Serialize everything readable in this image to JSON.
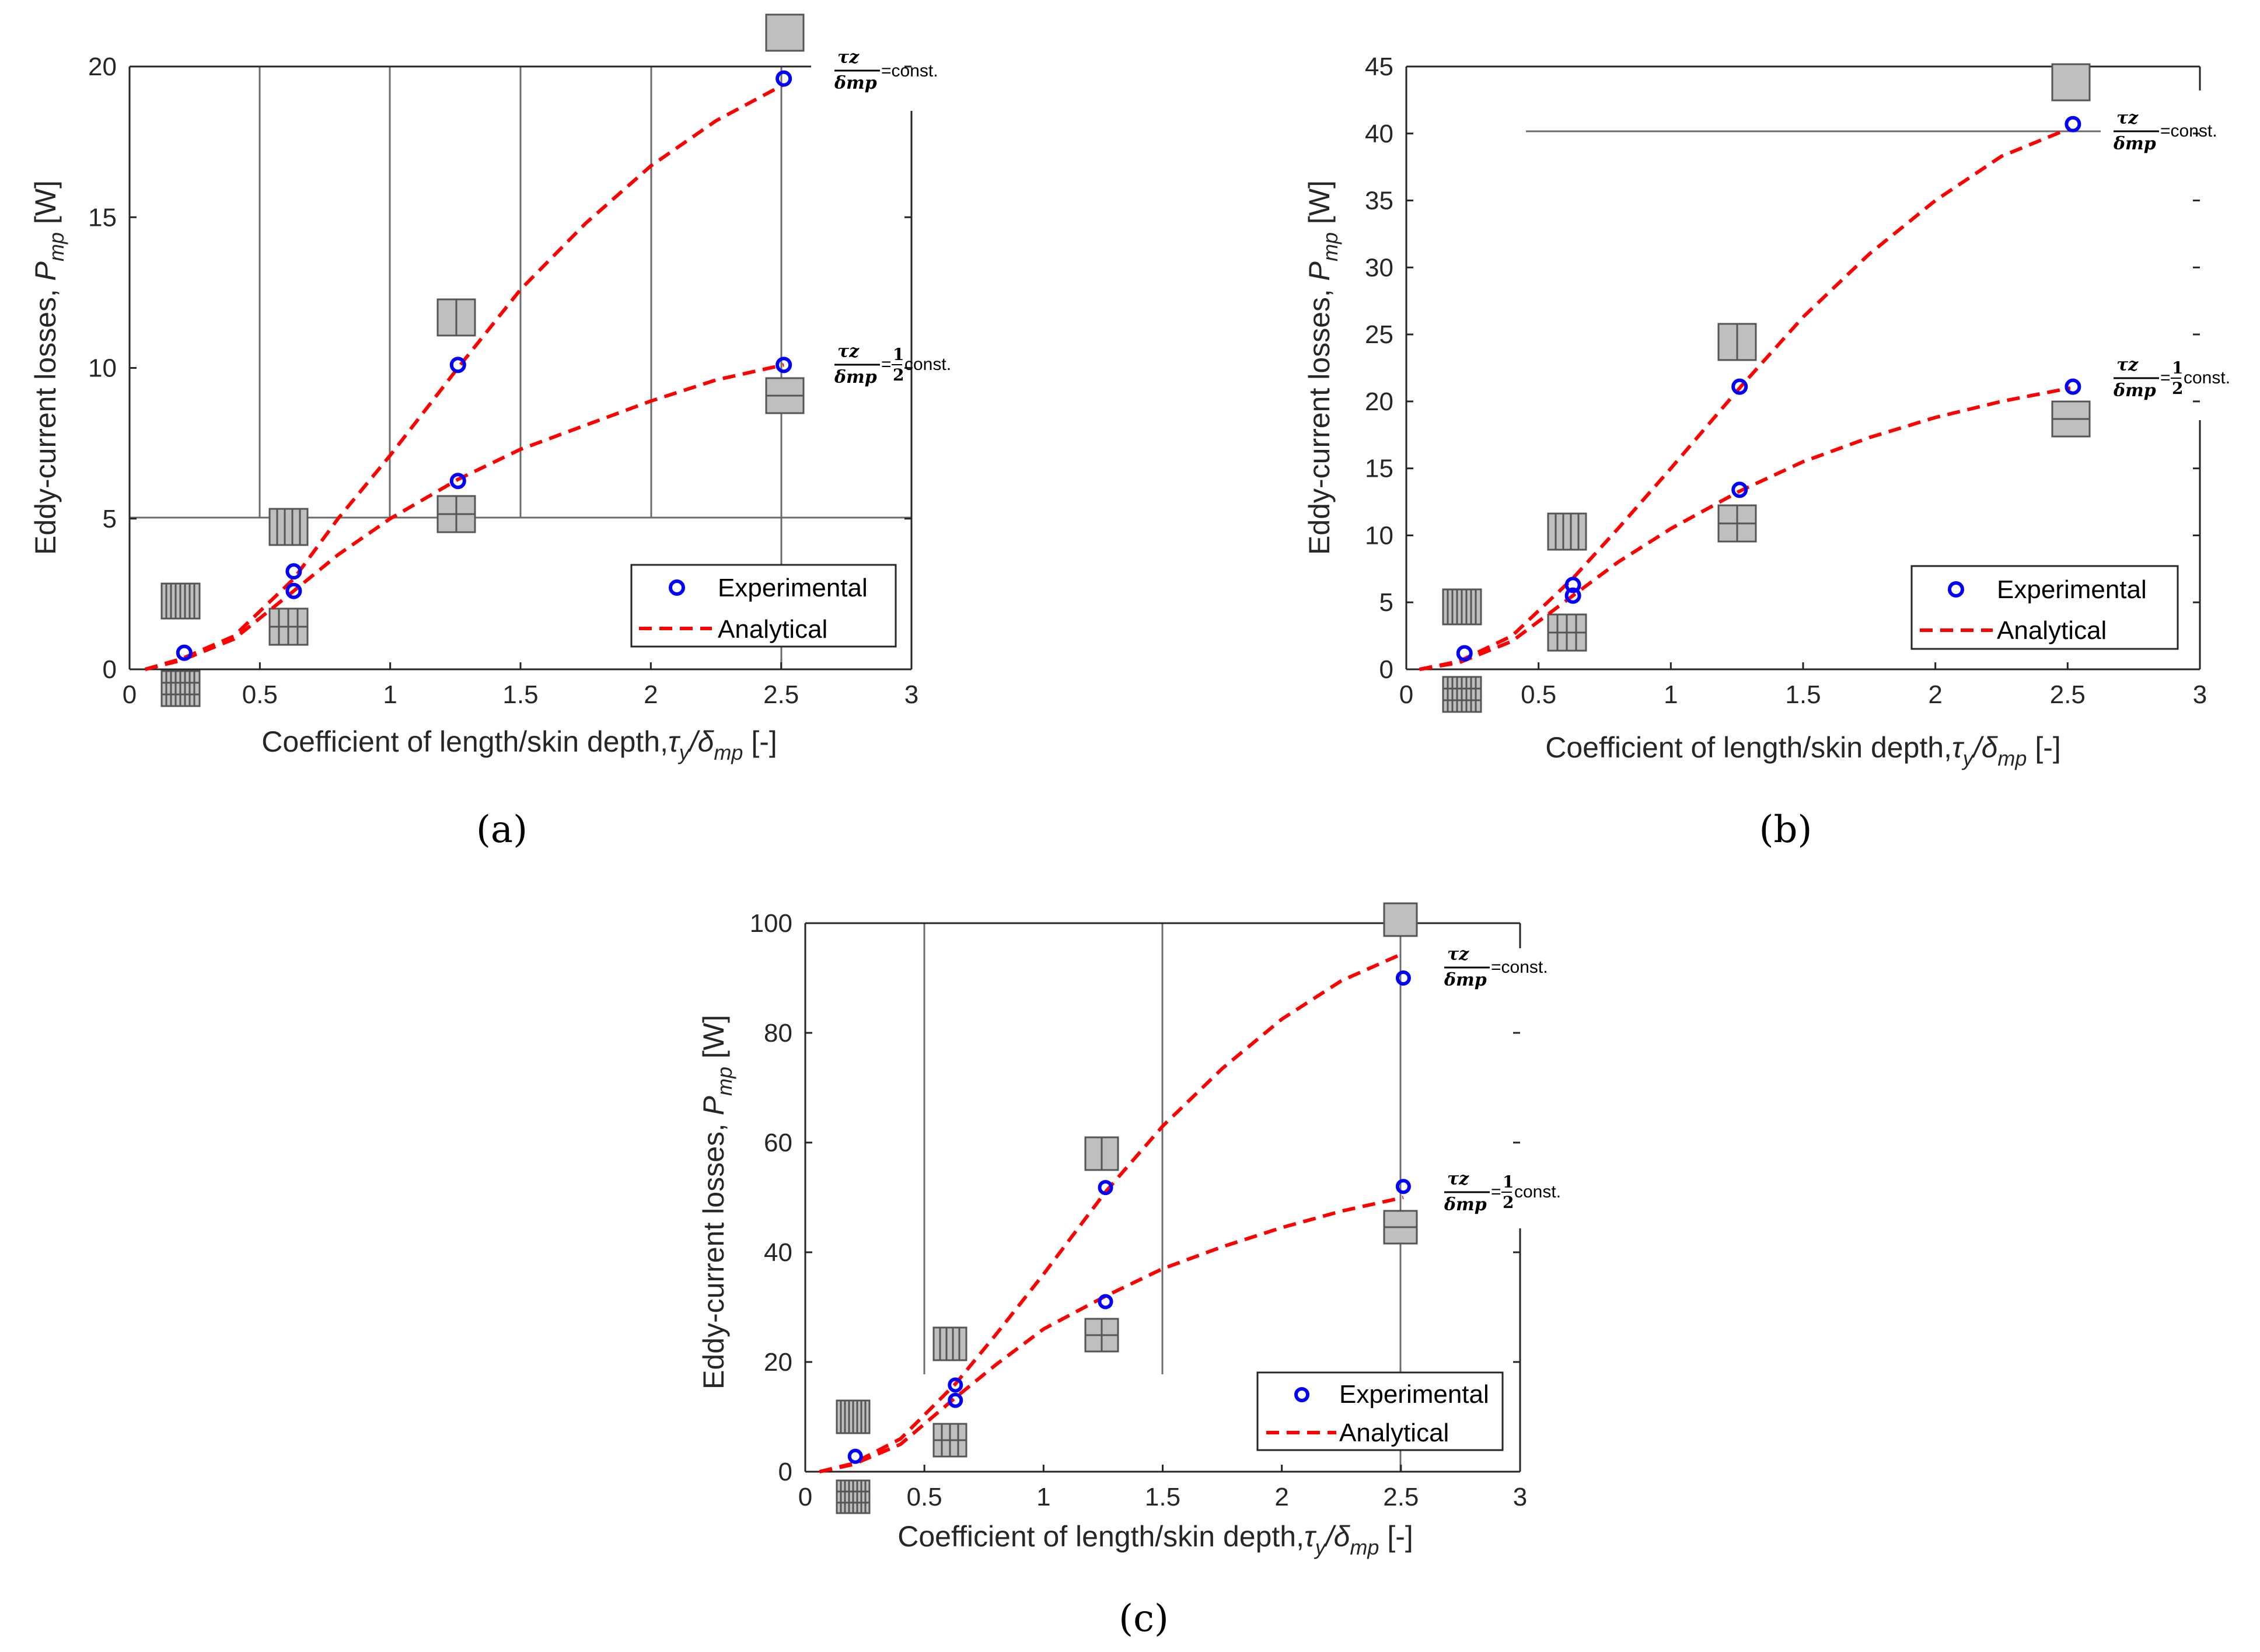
{
  "figure": {
    "panels": [
      "(a)",
      "(b)",
      "(c)"
    ]
  },
  "legend": {
    "experimental": "Experimental",
    "analytical": "Analytical"
  },
  "axes": {
    "xlabel": "Coefficient of length/skin depth,",
    "xlabel_math": "τ",
    "xlabel_sub1": "y",
    "xlabel_sep": "/δ",
    "xlabel_sub2": "mp",
    "xlabel_unit": "[-]",
    "ylabel": "Eddy-current losses,",
    "ylabel_math": "P",
    "ylabel_sub": "mp",
    "ylabel_unit": "[W]"
  },
  "annotations": {
    "tau_z": "τz",
    "delta_mp": "δmp",
    "eq_const": "=const.",
    "eq": "=",
    "half_num": "1",
    "half_den": "2",
    "const": "const."
  },
  "colors": {
    "experimental": "#0000ff",
    "analytical": "#ff0000",
    "marker_fill": "#c0c0c0"
  },
  "chart_data": [
    {
      "type": "scatter",
      "panel": "(a)",
      "xlim": [
        0,
        3
      ],
      "ylim": [
        0,
        20
      ],
      "xticks": [
        0,
        0.5,
        1,
        1.5,
        2,
        2.5,
        3
      ],
      "yticks": [
        0,
        5,
        10,
        15,
        20
      ],
      "series": [
        {
          "name": "Experimental",
          "kind": "markers",
          "points": [
            [
              0.21,
              0.55
            ],
            [
              0.63,
              3.25
            ],
            [
              0.63,
              2.6
            ],
            [
              1.26,
              10.1
            ],
            [
              1.26,
              6.25
            ],
            [
              2.51,
              19.6
            ],
            [
              2.51,
              10.1
            ]
          ]
        },
        {
          "name": "Analytical",
          "kind": "dashed",
          "curve": "τz/δmp = const.",
          "points": [
            [
              0.06,
              0.0
            ],
            [
              0.2,
              0.35
            ],
            [
              0.4,
              1.1
            ],
            [
              0.63,
              3.0
            ],
            [
              0.8,
              5.0
            ],
            [
              1.0,
              7.1
            ],
            [
              1.26,
              10.0
            ],
            [
              1.5,
              12.6
            ],
            [
              1.75,
              14.8
            ],
            [
              2.0,
              16.7
            ],
            [
              2.25,
              18.2
            ],
            [
              2.51,
              19.4
            ]
          ]
        },
        {
          "name": "Analytical",
          "kind": "dashed",
          "curve": "τz/δmp = 1/2 const.",
          "points": [
            [
              0.06,
              0.0
            ],
            [
              0.2,
              0.3
            ],
            [
              0.4,
              1.0
            ],
            [
              0.63,
              2.6
            ],
            [
              0.8,
              3.8
            ],
            [
              1.0,
              5.0
            ],
            [
              1.26,
              6.3
            ],
            [
              1.5,
              7.3
            ],
            [
              1.75,
              8.1
            ],
            [
              2.0,
              8.9
            ],
            [
              2.25,
              9.6
            ],
            [
              2.51,
              10.1
            ]
          ]
        }
      ]
    },
    {
      "type": "scatter",
      "panel": "(b)",
      "xlim": [
        0,
        3
      ],
      "ylim": [
        0,
        45
      ],
      "xticks": [
        0,
        0.5,
        1,
        1.5,
        2,
        2.5,
        3
      ],
      "yticks": [
        0,
        5,
        10,
        15,
        20,
        25,
        30,
        35,
        40,
        45
      ],
      "series": [
        {
          "name": "Experimental",
          "kind": "markers",
          "points": [
            [
              0.22,
              1.2
            ],
            [
              0.63,
              6.3
            ],
            [
              0.63,
              5.5
            ],
            [
              1.26,
              21.1
            ],
            [
              1.26,
              13.4
            ],
            [
              2.52,
              40.7
            ],
            [
              2.52,
              21.1
            ]
          ]
        },
        {
          "name": "Analytical",
          "kind": "dashed",
          "curve": "τz/δmp = const.",
          "points": [
            [
              0.05,
              0.0
            ],
            [
              0.2,
              0.6
            ],
            [
              0.4,
              2.5
            ],
            [
              0.63,
              6.8
            ],
            [
              0.8,
              10.5
            ],
            [
              1.0,
              15.0
            ],
            [
              1.26,
              21.0
            ],
            [
              1.5,
              26.3
            ],
            [
              1.75,
              31.0
            ],
            [
              2.0,
              35.0
            ],
            [
              2.25,
              38.3
            ],
            [
              2.51,
              40.4
            ]
          ]
        },
        {
          "name": "Analytical",
          "kind": "dashed",
          "curve": "τz/δmp = 1/2 const.",
          "points": [
            [
              0.05,
              0.0
            ],
            [
              0.2,
              0.5
            ],
            [
              0.4,
              2.1
            ],
            [
              0.63,
              5.5
            ],
            [
              0.8,
              8.0
            ],
            [
              1.0,
              10.5
            ],
            [
              1.26,
              13.3
            ],
            [
              1.5,
              15.5
            ],
            [
              1.75,
              17.3
            ],
            [
              2.0,
              18.8
            ],
            [
              2.25,
              20.0
            ],
            [
              2.51,
              21.0
            ]
          ]
        }
      ]
    },
    {
      "type": "scatter",
      "panel": "(c)",
      "xlim": [
        0,
        3
      ],
      "ylim": [
        0,
        100
      ],
      "xticks": [
        0,
        0.5,
        1,
        1.5,
        2,
        2.5,
        3
      ],
      "yticks": [
        0,
        20,
        40,
        60,
        80,
        100
      ],
      "series": [
        {
          "name": "Experimental",
          "kind": "markers",
          "points": [
            [
              0.21,
              2.8
            ],
            [
              0.63,
              15.8
            ],
            [
              0.63,
              13.0
            ],
            [
              1.26,
              51.8
            ],
            [
              1.26,
              31.0
            ],
            [
              2.51,
              90.0
            ],
            [
              2.51,
              52.0
            ]
          ]
        },
        {
          "name": "Analytical",
          "kind": "dashed",
          "curve": "τz/δmp = const.",
          "points": [
            [
              0.06,
              0.0
            ],
            [
              0.2,
              1.5
            ],
            [
              0.4,
              6.0
            ],
            [
              0.63,
              16.0
            ],
            [
              0.8,
              25.0
            ],
            [
              1.0,
              36.0
            ],
            [
              1.26,
              51.0
            ],
            [
              1.5,
              63.0
            ],
            [
              1.75,
              73.5
            ],
            [
              2.0,
              82.5
            ],
            [
              2.25,
              89.5
            ],
            [
              2.51,
              94.5
            ]
          ]
        },
        {
          "name": "Analytical",
          "kind": "dashed",
          "curve": "τz/δmp = 1/2 const.",
          "points": [
            [
              0.06,
              0.0
            ],
            [
              0.2,
              1.3
            ],
            [
              0.4,
              5.0
            ],
            [
              0.63,
              13.5
            ],
            [
              0.8,
              19.5
            ],
            [
              1.0,
              26.0
            ],
            [
              1.26,
              32.0
            ],
            [
              1.5,
              37.0
            ],
            [
              1.75,
              41.0
            ],
            [
              2.0,
              44.5
            ],
            [
              2.25,
              47.5
            ],
            [
              2.51,
              50.0
            ]
          ]
        }
      ]
    }
  ]
}
